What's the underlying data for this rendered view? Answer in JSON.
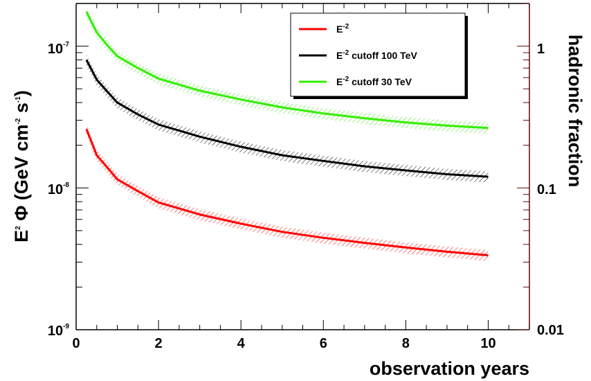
{
  "chart_data": {
    "type": "line",
    "x_axis": {
      "label": "observation years",
      "range": [
        0,
        11
      ],
      "ticks": [
        0,
        2,
        4,
        6,
        8,
        10
      ],
      "tick_labels": [
        "0",
        "2",
        "4",
        "6",
        "8",
        "10"
      ]
    },
    "y_axis_left": {
      "label_parts": {
        "e": "E",
        "e_exp": "2",
        "phi": " Φ (GeV cm",
        "cm_exp": "-2",
        "s": " s",
        "s_exp": "-1",
        "close": ")"
      },
      "scale": "log",
      "range": [
        1e-09,
        2e-07
      ],
      "ticks": [
        1e-09,
        1e-08,
        1e-07
      ],
      "tick_labels": [
        {
          "base": "10",
          "exp": "-9"
        },
        {
          "base": "10",
          "exp": "-8"
        },
        {
          "base": "10",
          "exp": "-7"
        }
      ]
    },
    "y_axis_right": {
      "label": "hadronic fraction",
      "scale": "log",
      "range": [
        0.01,
        2
      ],
      "ticks": [
        0.01,
        0.1,
        1
      ],
      "tick_labels": [
        "0.01",
        "0.1",
        "1"
      ],
      "color": "#660000"
    },
    "legend": {
      "placement": "top-right",
      "entries": [
        {
          "base": "E",
          "exp": "-2",
          "rest": ""
        },
        {
          "base": "E",
          "exp": "-2",
          "rest": " cutoff 100 TeV"
        },
        {
          "base": "E",
          "exp": "-2",
          "rest": " cutoff 30 TeV"
        }
      ]
    },
    "series": [
      {
        "color": "#ff0000",
        "x": [
          0.25,
          0.5,
          0.75,
          1,
          1.5,
          2,
          3,
          4,
          5,
          6,
          7,
          8,
          9,
          10
        ],
        "y": [
          2.6e-08,
          1.7e-08,
          1.4e-08,
          1.15e-08,
          9.5e-09,
          7.9e-09,
          6.5e-09,
          5.6e-09,
          4.9e-09,
          4.45e-09,
          4.1e-09,
          3.8e-09,
          3.55e-09,
          3.35e-09
        ]
      },
      {
        "color": "#000000",
        "x": [
          0.25,
          0.5,
          0.75,
          1,
          1.5,
          2,
          3,
          4,
          5,
          6,
          7,
          8,
          9,
          10
        ],
        "y": [
          8e-08,
          5.8e-08,
          4.8e-08,
          4e-08,
          3.3e-08,
          2.8e-08,
          2.3e-08,
          1.95e-08,
          1.7e-08,
          1.55e-08,
          1.42e-08,
          1.33e-08,
          1.25e-08,
          1.2e-08
        ]
      },
      {
        "color": "#33ee00",
        "x": [
          0.25,
          0.5,
          0.75,
          1,
          1.5,
          2,
          3,
          4,
          5,
          6,
          7,
          8,
          9,
          10
        ],
        "y": [
          1.75e-07,
          1.25e-07,
          1.02e-07,
          8.5e-08,
          7e-08,
          5.9e-08,
          4.85e-08,
          4.2e-08,
          3.7e-08,
          3.35e-08,
          3.1e-08,
          2.9e-08,
          2.75e-08,
          2.65e-08
        ]
      }
    ],
    "band_relative_width": 0.09
  }
}
